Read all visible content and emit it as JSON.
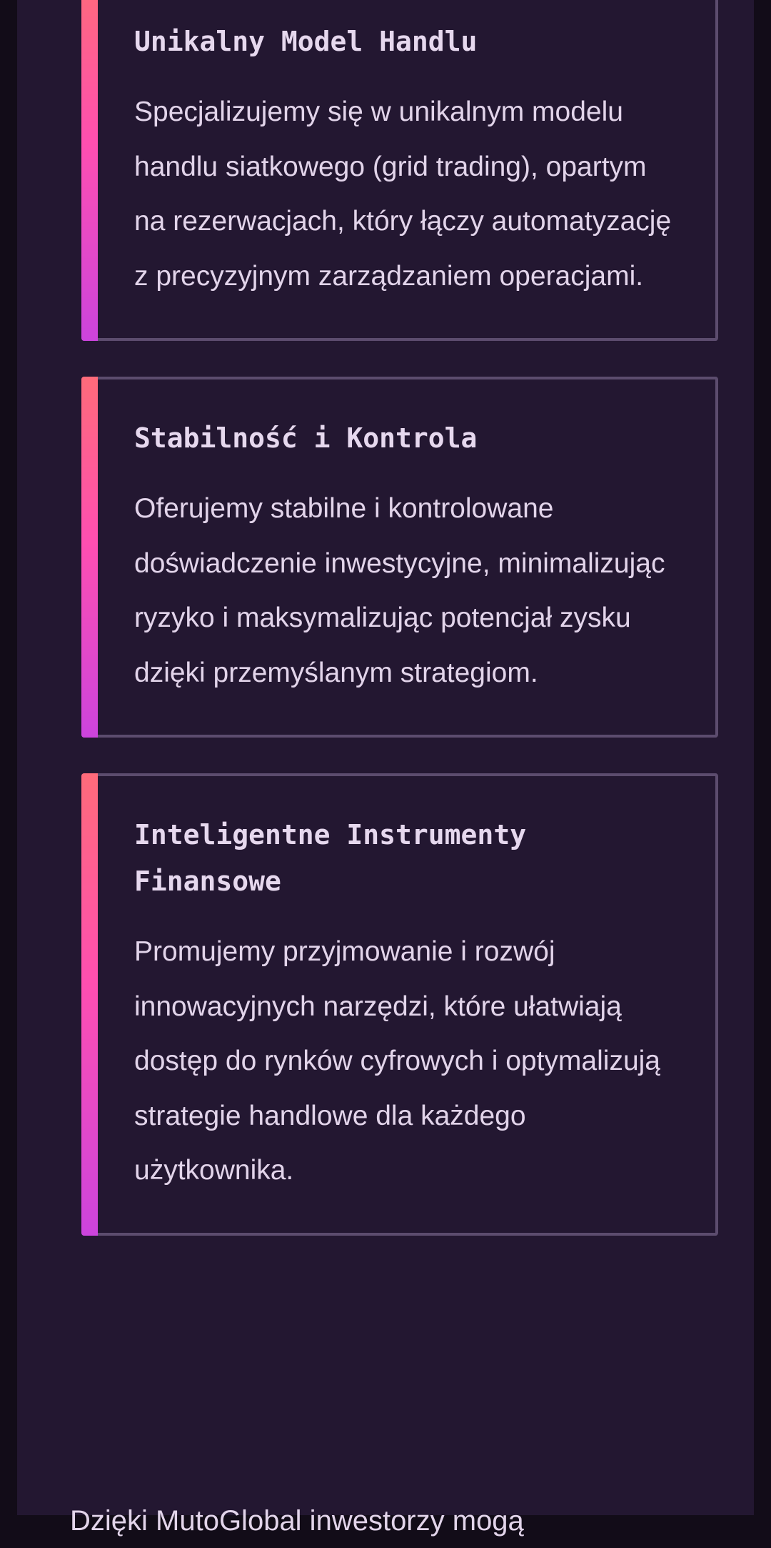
{
  "cards": [
    {
      "title": "Unikalny Model Handlu",
      "body": "Specjalizujemy się w unikalnym modelu handlu siatkowego (grid trading), opartym na rezerwacjach, który łączy automatyzację z precyzyjnym zarządzaniem operacjami."
    },
    {
      "title": "Stabilność i Kontrola",
      "body": "Oferujemy stabilne i kontrolowane doświadczenie inwestycyjne, minimalizując ryzyko i maksymalizując potencjał zysku dzięki przemyślanym strategiom."
    },
    {
      "title": "Inteligentne Instrumenty Finansowe",
      "body": "Promujemy przyjmowanie i rozwój innowacyjnych narzędzi, które ułatwiają dostęp do rynków cyfrowych i optymalizują strategie handlowe dla każdego użytkownika."
    }
  ],
  "footer_text": "Dzięki MutoGlobal inwestorzy mogą",
  "colors": {
    "accent_top": "#ff6b7a",
    "accent_mid": "#ff4fb0",
    "accent_bottom": "#cc44dd",
    "panel": "#231731",
    "border": "#5c4c6e"
  }
}
